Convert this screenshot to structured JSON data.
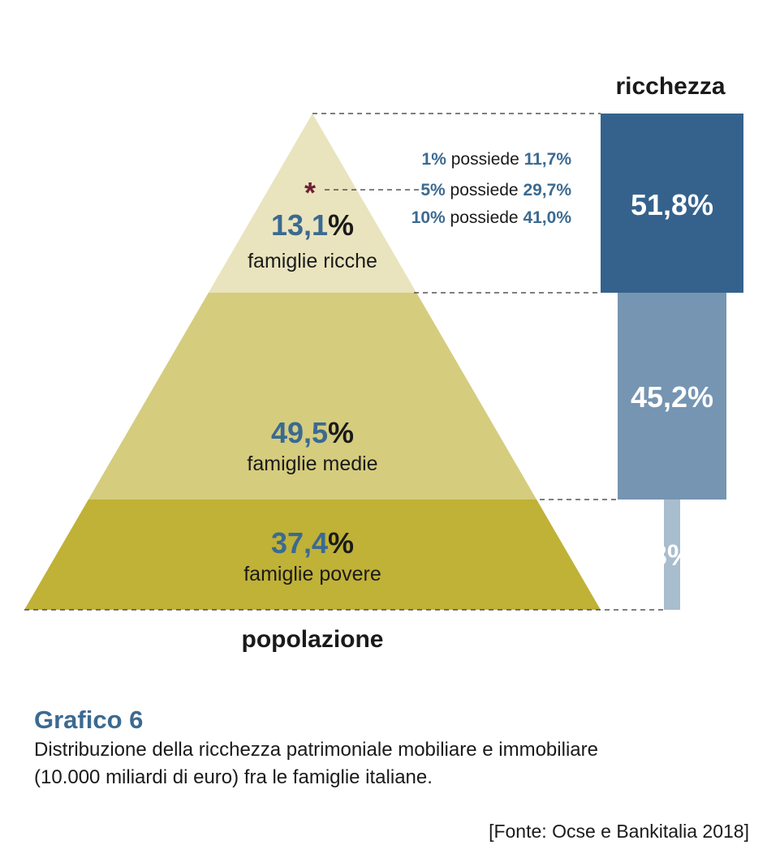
{
  "chart_data": {
    "type": "pyramid-bar",
    "pyramid_axis_label": "popolazione",
    "bar_axis_label": "ricchezza",
    "groups": [
      {
        "name": "famiglie ricche",
        "population_share": 13.1,
        "population_label": "13,1",
        "wealth_share": 51.8,
        "wealth_label": "51,8%",
        "fill": "#e9e4bd",
        "bar_fill": "#35628c"
      },
      {
        "name": "famiglie medie",
        "population_share": 49.5,
        "population_label": "49,5",
        "wealth_share": 45.2,
        "wealth_label": "45,2%",
        "fill": "#d5cc7e",
        "bar_fill": "#7595b2"
      },
      {
        "name": "famiglie povere",
        "population_share": 37.4,
        "population_label": "37,4",
        "wealth_share": 3,
        "wealth_label": "3%",
        "fill": "#c0b137",
        "bar_fill": "#a8bdce"
      }
    ],
    "percent_sign": "%",
    "top_shares": [
      {
        "pct": "1%",
        "verb": "possiede",
        "value": "11,7%"
      },
      {
        "pct": "5%",
        "verb": "possiede",
        "value": "29,7%"
      },
      {
        "pct": "10%",
        "verb": "possiede",
        "value": "41,0%"
      }
    ],
    "marker": "*",
    "marker_color": "#6e1f35"
  },
  "caption": {
    "title": "Grafico 6",
    "text_line1": "Distribuzione della ricchezza patrimoniale mobiliare e immobiliare",
    "text_line2": "(10.000 miliardi di euro) fra le famiglie italiane.",
    "source": "[Fonte: Ocse e Bankitalia 2018]"
  }
}
